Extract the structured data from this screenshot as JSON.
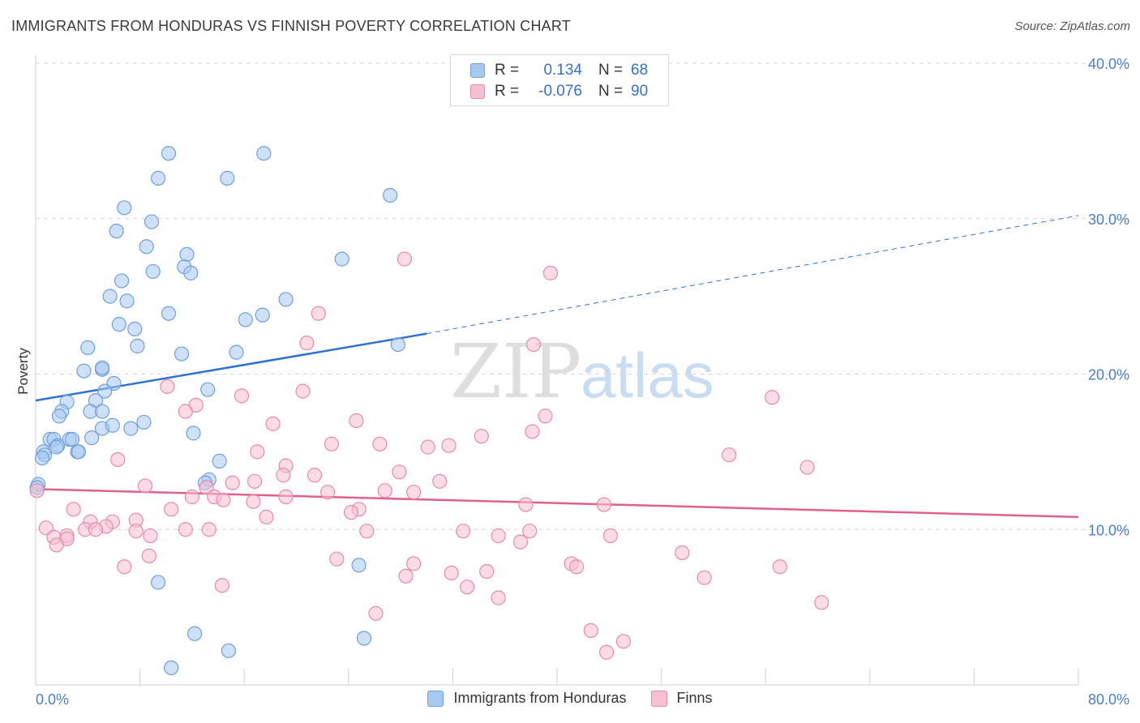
{
  "header": {
    "title": "IMMIGRANTS FROM HONDURAS VS FINNISH POVERTY CORRELATION CHART",
    "source": "Source: ZipAtlas.com"
  },
  "watermark": {
    "zip": "ZIP",
    "atlas": "atlas"
  },
  "legend_top": {
    "rows": [
      {
        "r_label": "R =",
        "r_value": "0.134",
        "n_label": "N =",
        "n_value": "68",
        "color": "#a8c8f0",
        "stroke": "#6e9fde"
      },
      {
        "r_label": "R =",
        "r_value": "-0.076",
        "n_label": "N =",
        "n_value": "90",
        "color": "#f7c0d2",
        "stroke": "#e88aaa"
      }
    ]
  },
  "legend_bottom": {
    "items": [
      {
        "label": "Immigrants from Honduras",
        "color": "#a8c8f0",
        "stroke": "#6e9fde"
      },
      {
        "label": "Finns",
        "color": "#f7c0d2",
        "stroke": "#e88aaa"
      }
    ]
  },
  "chart_data": {
    "type": "scatter",
    "title": "IMMIGRANTS FROM HONDURAS VS FINNISH POVERTY CORRELATION CHART",
    "xlabel": "",
    "ylabel": "Poverty",
    "xlim": [
      0,
      80
    ],
    "ylim": [
      0,
      40
    ],
    "x_tick_labels": [
      "0.0%",
      "80.0%"
    ],
    "y_ticks": [
      10,
      20,
      30,
      40
    ],
    "y_tick_labels": [
      "10.0%",
      "20.0%",
      "30.0%",
      "40.0%"
    ],
    "grid": true,
    "legend": "top-center",
    "series": [
      {
        "name": "Immigrants from Honduras",
        "color": "#6e9fde",
        "fill": "#a8c8f0",
        "trend": {
          "x": [
            0,
            30,
            80
          ],
          "y": [
            18.3,
            22.6,
            30.2
          ],
          "solid_until": 30
        },
        "points": [
          [
            10.2,
            34.2
          ],
          [
            17.5,
            34.2
          ],
          [
            9.4,
            32.6
          ],
          [
            14.7,
            32.6
          ],
          [
            27.2,
            31.5
          ],
          [
            6.8,
            30.7
          ],
          [
            8.9,
            29.8
          ],
          [
            6.2,
            29.2
          ],
          [
            8.5,
            28.2
          ],
          [
            11.6,
            27.7
          ],
          [
            23.5,
            27.4
          ],
          [
            11.4,
            26.9
          ],
          [
            9.0,
            26.6
          ],
          [
            11.9,
            26.5
          ],
          [
            6.6,
            26.0
          ],
          [
            5.7,
            25.0
          ],
          [
            7.0,
            24.7
          ],
          [
            19.2,
            24.8
          ],
          [
            10.2,
            23.9
          ],
          [
            17.4,
            23.8
          ],
          [
            16.1,
            23.5
          ],
          [
            6.4,
            23.2
          ],
          [
            7.6,
            22.9
          ],
          [
            27.8,
            21.9
          ],
          [
            4.0,
            21.7
          ],
          [
            7.8,
            21.8
          ],
          [
            11.2,
            21.3
          ],
          [
            15.4,
            21.4
          ],
          [
            3.7,
            20.2
          ],
          [
            5.1,
            20.3
          ],
          [
            5.1,
            20.4
          ],
          [
            6.0,
            19.4
          ],
          [
            13.2,
            19.0
          ],
          [
            5.3,
            18.9
          ],
          [
            4.6,
            18.3
          ],
          [
            2.4,
            18.2
          ],
          [
            2.0,
            17.6
          ],
          [
            1.8,
            17.3
          ],
          [
            4.2,
            17.6
          ],
          [
            5.1,
            17.6
          ],
          [
            8.3,
            16.9
          ],
          [
            7.3,
            16.5
          ],
          [
            5.1,
            16.5
          ],
          [
            5.9,
            16.7
          ],
          [
            12.1,
            16.2
          ],
          [
            1.1,
            15.8
          ],
          [
            1.4,
            15.8
          ],
          [
            2.6,
            15.8
          ],
          [
            2.8,
            15.8
          ],
          [
            4.3,
            15.9
          ],
          [
            1.7,
            15.4
          ],
          [
            1.6,
            15.3
          ],
          [
            0.6,
            15.0
          ],
          [
            3.2,
            15.0
          ],
          [
            3.3,
            15.0
          ],
          [
            0.7,
            14.8
          ],
          [
            0.5,
            14.6
          ],
          [
            14.1,
            14.4
          ],
          [
            13.3,
            13.2
          ],
          [
            13.0,
            13.0
          ],
          [
            0.2,
            12.9
          ],
          [
            9.4,
            6.6
          ],
          [
            24.8,
            7.7
          ],
          [
            12.2,
            3.3
          ],
          [
            14.8,
            2.2
          ],
          [
            25.2,
            3.0
          ],
          [
            10.4,
            1.1
          ],
          [
            0.1,
            12.7
          ]
        ]
      },
      {
        "name": "Finns",
        "color": "#e88aaa",
        "fill": "#f7c0d2",
        "trend": {
          "x": [
            0,
            80
          ],
          "y": [
            12.6,
            10.8
          ]
        },
        "points": [
          [
            28.3,
            27.4
          ],
          [
            39.5,
            26.5
          ],
          [
            21.7,
            23.9
          ],
          [
            20.8,
            22.0
          ],
          [
            38.2,
            21.9
          ],
          [
            10.1,
            19.2
          ],
          [
            15.8,
            18.6
          ],
          [
            20.5,
            18.9
          ],
          [
            56.5,
            18.5
          ],
          [
            12.3,
            18.0
          ],
          [
            11.5,
            17.6
          ],
          [
            39.1,
            17.3
          ],
          [
            24.6,
            17.0
          ],
          [
            18.2,
            16.8
          ],
          [
            38.1,
            16.3
          ],
          [
            34.2,
            16.0
          ],
          [
            22.7,
            15.5
          ],
          [
            26.4,
            15.5
          ],
          [
            30.1,
            15.3
          ],
          [
            31.7,
            15.4
          ],
          [
            17.0,
            15.0
          ],
          [
            53.2,
            14.8
          ],
          [
            6.3,
            14.5
          ],
          [
            19.2,
            14.1
          ],
          [
            59.2,
            14.0
          ],
          [
            27.9,
            13.7
          ],
          [
            19.0,
            13.5
          ],
          [
            21.4,
            13.5
          ],
          [
            16.8,
            13.1
          ],
          [
            15.1,
            13.0
          ],
          [
            31.0,
            13.1
          ],
          [
            8.4,
            12.8
          ],
          [
            13.1,
            12.7
          ],
          [
            22.4,
            12.4
          ],
          [
            26.8,
            12.5
          ],
          [
            29.0,
            12.4
          ],
          [
            19.2,
            12.1
          ],
          [
            12.0,
            12.1
          ],
          [
            13.7,
            12.1
          ],
          [
            14.4,
            11.9
          ],
          [
            16.7,
            11.8
          ],
          [
            37.6,
            11.6
          ],
          [
            43.6,
            11.6
          ],
          [
            2.9,
            11.3
          ],
          [
            10.4,
            11.3
          ],
          [
            24.8,
            11.3
          ],
          [
            24.2,
            11.1
          ],
          [
            17.7,
            10.8
          ],
          [
            7.7,
            10.6
          ],
          [
            4.2,
            10.5
          ],
          [
            5.9,
            10.5
          ],
          [
            5.4,
            10.2
          ],
          [
            0.8,
            10.1
          ],
          [
            3.8,
            10.0
          ],
          [
            4.6,
            10.0
          ],
          [
            7.7,
            9.9
          ],
          [
            11.5,
            10.0
          ],
          [
            13.3,
            10.0
          ],
          [
            25.4,
            9.9
          ],
          [
            32.8,
            9.9
          ],
          [
            37.9,
            9.9
          ],
          [
            8.8,
            9.6
          ],
          [
            1.4,
            9.5
          ],
          [
            2.4,
            9.6
          ],
          [
            35.5,
            9.6
          ],
          [
            44.1,
            9.6
          ],
          [
            2.4,
            9.4
          ],
          [
            37.2,
            9.2
          ],
          [
            1.6,
            9.0
          ],
          [
            8.7,
            8.3
          ],
          [
            49.6,
            8.5
          ],
          [
            23.1,
            8.1
          ],
          [
            41.1,
            7.8
          ],
          [
            29.0,
            7.8
          ],
          [
            41.5,
            7.6
          ],
          [
            57.1,
            7.6
          ],
          [
            6.8,
            7.6
          ],
          [
            31.9,
            7.2
          ],
          [
            34.6,
            7.3
          ],
          [
            28.4,
            7.0
          ],
          [
            51.3,
            6.9
          ],
          [
            14.3,
            6.4
          ],
          [
            33.1,
            6.3
          ],
          [
            35.5,
            5.6
          ],
          [
            60.3,
            5.3
          ],
          [
            26.1,
            4.6
          ],
          [
            42.6,
            3.5
          ],
          [
            45.1,
            2.8
          ],
          [
            43.8,
            2.1
          ],
          [
            0.1,
            12.5
          ]
        ]
      }
    ]
  }
}
